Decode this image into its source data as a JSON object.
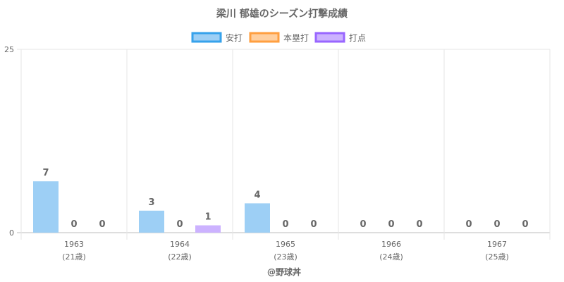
{
  "chart_data": {
    "type": "bar",
    "title": "梁川 郁雄のシーズン打撃成績",
    "categories": [
      "1963",
      "1964",
      "1965",
      "1966",
      "1967"
    ],
    "category_sublabels": [
      "(21歳)",
      "(22歳)",
      "(23歳)",
      "(24歳)",
      "(25歳)"
    ],
    "series": [
      {
        "name": "安打",
        "values": [
          7,
          3,
          4,
          0,
          0
        ],
        "fill": "#9dcff5",
        "stroke": "#36a2eb"
      },
      {
        "name": "本塁打",
        "values": [
          0,
          0,
          0,
          0,
          0
        ],
        "fill": "#ffcf9f",
        "stroke": "#ff9f40"
      },
      {
        "name": "打点",
        "values": [
          0,
          1,
          0,
          0,
          0
        ],
        "fill": "#ccb2ff",
        "stroke": "#9966ff"
      }
    ],
    "ylim": [
      0,
      25
    ],
    "y_ticks": [
      0,
      25
    ],
    "grid": true,
    "legend_position": "top",
    "data_labels": true
  },
  "credit": "@野球丼"
}
